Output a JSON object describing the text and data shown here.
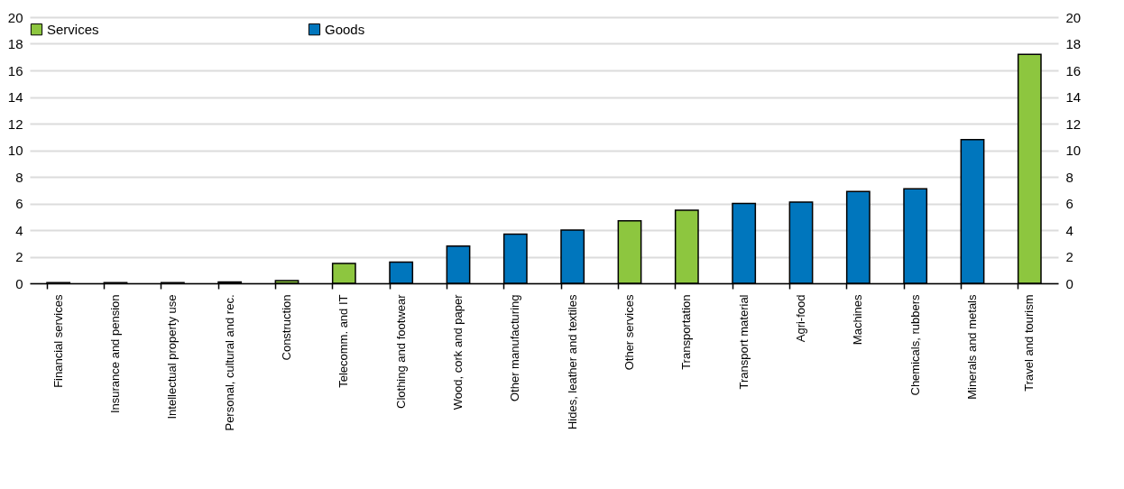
{
  "chart_data": {
    "type": "bar",
    "categories": [
      "Financial services",
      "Insurance and pension",
      "Intellectual property use",
      "Personal, cultural and rec.",
      "Construction",
      "Telecomm. and IT",
      "Clothing and footwear",
      "Wood, cork and paper",
      "Other manufacturing",
      "Hides, leather and textiles",
      "Other services",
      "Transportation",
      "Transport material",
      "Agri-food",
      "Machines",
      "Chemicals, rubbers",
      "Minerals and metals",
      "Travel and tourism"
    ],
    "series": [
      {
        "name": "Services",
        "color": "#8dc63f",
        "values": [
          0.05,
          0.05,
          0.05,
          0.1,
          0.2,
          1.5,
          null,
          null,
          null,
          null,
          4.7,
          5.5,
          null,
          null,
          null,
          null,
          null,
          17.2
        ]
      },
      {
        "name": "Goods",
        "color": "#0076bd",
        "values": [
          null,
          null,
          null,
          null,
          null,
          null,
          1.6,
          2.8,
          3.7,
          4.0,
          null,
          null,
          6.0,
          6.1,
          6.9,
          7.1,
          10.8,
          null
        ]
      }
    ],
    "ylim": [
      0,
      20
    ],
    "yticks": [
      0,
      2,
      4,
      6,
      8,
      10,
      12,
      14,
      16,
      18,
      20
    ],
    "y2lim": [
      0,
      20
    ],
    "y2ticks": [
      0,
      2,
      4,
      6,
      8,
      10,
      12,
      14,
      16,
      18,
      20
    ],
    "grid": "y",
    "legend": "top"
  }
}
